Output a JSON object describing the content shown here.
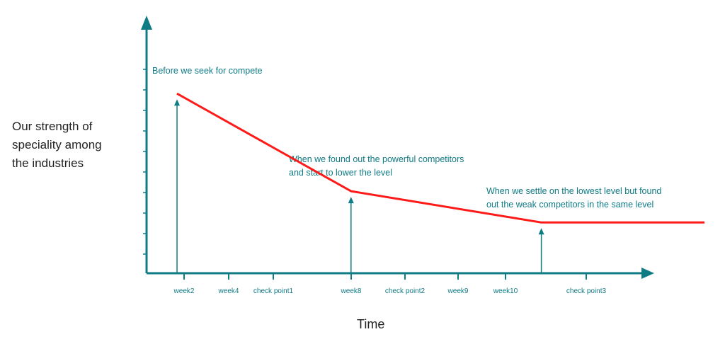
{
  "chart_data": {
    "type": "line",
    "xlabel": "Time",
    "ylabel": "Our strength of speciality among the industries",
    "ylabel_lines": [
      "Our strength of",
      "speciality among",
      "the industries"
    ],
    "ticks": [
      "week2",
      "week4",
      "check point1",
      "week8",
      "check point2",
      "week9",
      "week10",
      "check point3"
    ],
    "series": [
      {
        "points": [
          {
            "x": 0.3,
            "y": 9.2
          },
          {
            "x": 3.5,
            "y": 4.2
          },
          {
            "x": 7.0,
            "y": 2.6
          },
          {
            "x": 10.0,
            "y": 2.6
          }
        ]
      }
    ],
    "xlim": [
      0,
      10
    ],
    "ylim": [
      0,
      12
    ],
    "annotations": [
      {
        "anchor_x": 0.3,
        "lines": [
          "Before we seek for compete"
        ]
      },
      {
        "anchor_x": 3.5,
        "lines": [
          "When we found out the powerful competitors",
          "and start to lower the level"
        ]
      },
      {
        "anchor_x": 7.0,
        "lines": [
          "When we settle on the lowest level but found",
          "out the weak competitors in the same level"
        ]
      }
    ],
    "grid": false,
    "colors": {
      "axis": "#0f7b85",
      "line": "#ff1a1a",
      "text": "#0f7b85"
    }
  }
}
